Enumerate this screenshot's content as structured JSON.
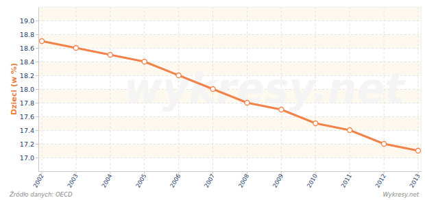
{
  "chart_data": {
    "type": "line",
    "y_label": "Dzieci (w %)",
    "categories": [
      "2002",
      "2003",
      "2004",
      "2005",
      "2006",
      "2007",
      "2008",
      "2009",
      "2010",
      "2011",
      "2012",
      "2013"
    ],
    "values": [
      18.7,
      18.6,
      18.5,
      18.4,
      18.2,
      18.0,
      17.8,
      17.7,
      17.5,
      17.4,
      17.2,
      17.1
    ],
    "color": "#f0824a",
    "marker": "circle",
    "ylim": [
      16.8,
      19.2
    ],
    "yticks": [
      {
        "value": 17,
        "label": "17.0"
      },
      17.2,
      17.4,
      17.6,
      17.8,
      {
        "value": 18,
        "label": "18.0"
      },
      18.2,
      18.4,
      18.6,
      18.8,
      {
        "value": 19,
        "label": "19.0"
      }
    ],
    "grid": true,
    "annotations": [
      "Źródło danych: OECD",
      "Wykresy.net",
      "wykresy.net"
    ]
  }
}
